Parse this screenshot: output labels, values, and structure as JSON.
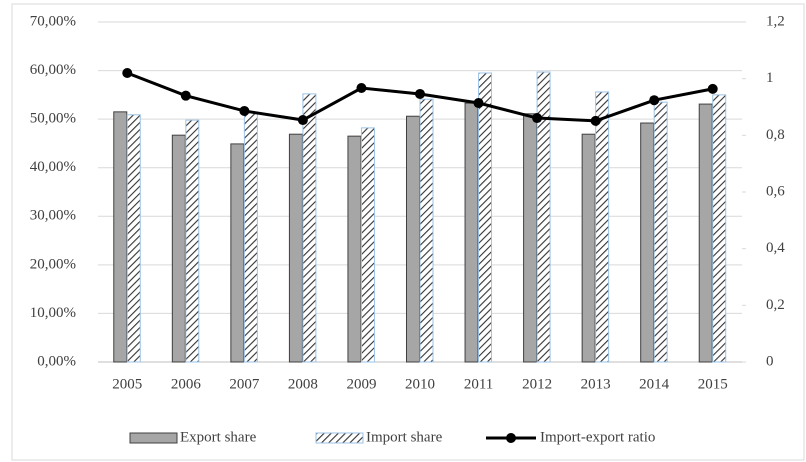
{
  "chart_data": {
    "type": "bar",
    "categories": [
      "2005",
      "2006",
      "2007",
      "2008",
      "2009",
      "2010",
      "2011",
      "2012",
      "2013",
      "2014",
      "2015"
    ],
    "series": [
      {
        "name": "Export share",
        "color": "#a6a6a6",
        "values": [
          51.5,
          46.7,
          44.9,
          46.9,
          46.5,
          50.6,
          53.3,
          51.1,
          46.9,
          49.2,
          53.1
        ]
      },
      {
        "name": "Import share",
        "color": "#9dc3e6",
        "values": [
          50.9,
          49.8,
          51.3,
          55.2,
          48.2,
          54.1,
          59.5,
          59.7,
          55.6,
          53.5,
          55.0
        ]
      },
      {
        "name": "Import-export ratio",
        "type": "line",
        "axis": "y2",
        "color": "#000000",
        "values": [
          1.02,
          0.94,
          0.886,
          0.854,
          0.967,
          0.946,
          0.914,
          0.861,
          0.851,
          0.924,
          0.964
        ]
      }
    ],
    "ylim": [
      0,
      70
    ],
    "yticks": [
      {
        "value": 0,
        "label": "0,00%"
      },
      {
        "value": 10,
        "label": "10,00%"
      },
      {
        "value": 20,
        "label": "20,00%"
      },
      {
        "value": 30,
        "label": "30,00%"
      },
      {
        "value": 40,
        "label": "40,00%"
      },
      {
        "value": 50,
        "label": "50,00%"
      },
      {
        "value": 60,
        "label": "60,00%"
      },
      {
        "value": 70,
        "label": "70,00%"
      }
    ],
    "y2lim": [
      0,
      1.2
    ],
    "y2ticks": [
      0,
      {
        "value": 0.2,
        "label": "0,2"
      },
      {
        "value": 0.4,
        "label": "0,4"
      },
      {
        "value": 0.6,
        "label": "0,6"
      },
      {
        "value": 0.8,
        "label": "0,8"
      },
      {
        "value": 1,
        "label": "1"
      },
      {
        "value": 1.2,
        "label": "1,2"
      }
    ],
    "grid": true,
    "legend": "bottom"
  }
}
